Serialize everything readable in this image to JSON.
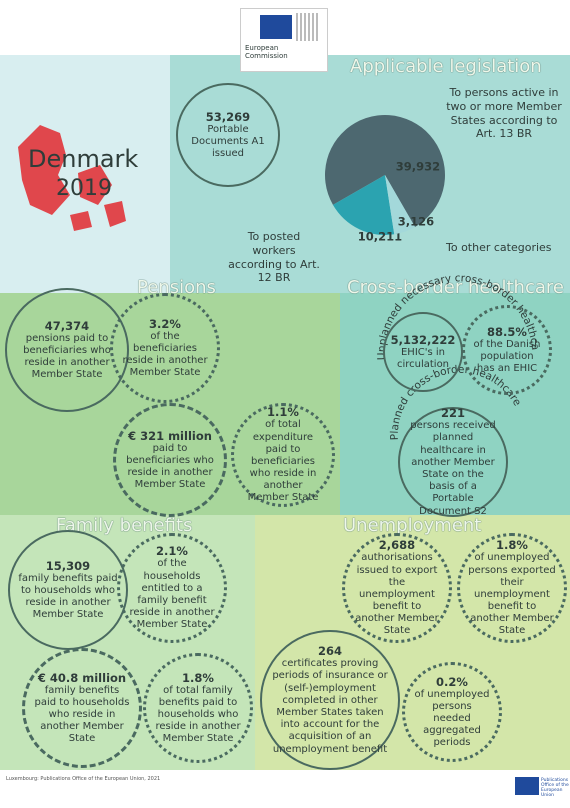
{
  "header": {
    "logo_text": "European Commission"
  },
  "country": {
    "name": "Denmark",
    "year": "2019"
  },
  "legislation": {
    "title": "Applicable legislation",
    "total": {
      "number": "53,269",
      "text": "Portable Documents A1 issued"
    }
  },
  "chart_data": {
    "type": "pie",
    "categories": [
      "To persons active in two or more Member States according to Art. 13 BR",
      "To posted workers according to Art. 12 BR",
      "To other categories"
    ],
    "values": [
      39932,
      10211,
      3126
    ],
    "value_labels": [
      "39,932",
      "10,211",
      "3,126"
    ],
    "colors": [
      "#4d6870",
      "#2ba3b0",
      "#a3d8da"
    ]
  },
  "pensions": {
    "title": "Pensions",
    "items": [
      {
        "number": "47,374",
        "text": "pensions paid to beneficiaries who reside in another Member State"
      },
      {
        "number": "3.2%",
        "text": "of the beneficiaries reside in another Member State"
      },
      {
        "number": "€ 321 million",
        "text": "paid to beneficiaries who reside in another Member State"
      },
      {
        "number": "1.1%",
        "text": "of total expenditure paid to beneficiaries who reside in another Member State"
      }
    ]
  },
  "healthcare": {
    "title": "Cross-border healthcare",
    "unplanned": {
      "heading": "Unplanned necessary cross-border healthcare",
      "items": [
        {
          "number": "5,132,222",
          "text": "EHIC's in circulation"
        },
        {
          "number": "88.5%",
          "text": "of the Danish population has an EHIC"
        }
      ]
    },
    "planned": {
      "heading": "Planned cross-border healthcare",
      "items": [
        {
          "number": "221",
          "text": "persons received planned healthcare in another Member State on the basis of a Portable Document S2"
        }
      ]
    }
  },
  "family": {
    "title": "Family benefits",
    "items": [
      {
        "number": "15,309",
        "text": "family benefits paid to households who reside in another Member State"
      },
      {
        "number": "2.1%",
        "text": "of the households entitled to a family benefit reside in another Member State"
      },
      {
        "number": "€ 40.8 million",
        "text": "family benefits paid to households who reside in another Member State"
      },
      {
        "number": "1.8%",
        "text": "of total family benefits paid to households who reside in another Member State"
      }
    ]
  },
  "unemployment": {
    "title": "Unemployment",
    "items": [
      {
        "number": "2,688",
        "text": "authorisations issued to export the unemployment benefit to another Member State"
      },
      {
        "number": "1.8%",
        "text": "of unemployed persons exported their unemployment benefit to another Member State"
      },
      {
        "number": "264",
        "text": "certificates proving periods of insurance or (self-)employment completed in other Member States taken into account for the acquisition of an unemployment benefit"
      },
      {
        "number": "0.2%",
        "text": "of unemployed persons needed aggregated periods"
      }
    ]
  },
  "footer": {
    "text": "Luxembourg: Publications Office of the European Union, 2021",
    "logo_text": "Publications Office of the European Union"
  }
}
